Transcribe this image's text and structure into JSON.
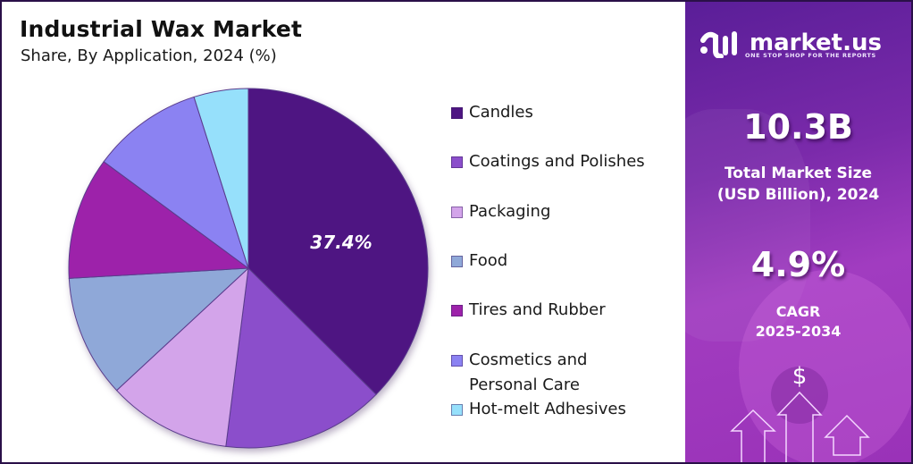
{
  "header": {
    "title": "Industrial Wax Market",
    "subtitle": "Share, By Application, 2024 (%)"
  },
  "chart_data": {
    "type": "pie",
    "title": "Industrial Wax Market",
    "subtitle": "Share, By Application, 2024 (%)",
    "categories": [
      "Candles",
      "Coatings and Polishes",
      "Packaging",
      "Food",
      "Tires and Rubber",
      "Cosmetics and Personal Care",
      "Hot-melt Adhesives"
    ],
    "values": [
      37.4,
      14.6,
      11.1,
      11.0,
      11.0,
      10.0,
      4.9
    ],
    "colors": [
      "#4e1582",
      "#8b4ecb",
      "#d3a4ea",
      "#8fa8d8",
      "#9d22aa",
      "#8b82f2",
      "#96e0fb"
    ],
    "data_labels": [
      {
        "category": "Candles",
        "text": "37.4%"
      }
    ],
    "start_angle_deg": 0,
    "direction": "clockwise",
    "legend_position": "right"
  },
  "legend": {
    "items": [
      {
        "label": "Candles",
        "label2": "",
        "color": "#4e1582"
      },
      {
        "label": "Coatings and Polishes",
        "label2": "",
        "color": "#8b4ecb"
      },
      {
        "label": "Packaging",
        "label2": "",
        "color": "#d3a4ea"
      },
      {
        "label": "Food",
        "label2": "",
        "color": "#8fa8d8"
      },
      {
        "label": "Tires and Rubber",
        "label2": "",
        "color": "#9d22aa"
      },
      {
        "label": "Cosmetics and",
        "label2": "Personal Care",
        "color": "#8b82f2"
      },
      {
        "label": "Hot-melt Adhesives",
        "label2": "",
        "color": "#96e0fb"
      }
    ]
  },
  "pie_label": "37.4%",
  "brand": {
    "name": "market.us",
    "tagline": "ONE STOP SHOP FOR THE REPORTS"
  },
  "stats": {
    "market_size_value": "10.3B",
    "market_size_label1": "Total Market Size",
    "market_size_label2": "(USD Billion), 2024",
    "cagr_value": "4.9%",
    "cagr_label1": "CAGR",
    "cagr_label2": "2025-2034",
    "dollar_icon": "$"
  },
  "colors": {
    "panel_start": "#5a1e98",
    "panel_end": "#a13cc0"
  }
}
